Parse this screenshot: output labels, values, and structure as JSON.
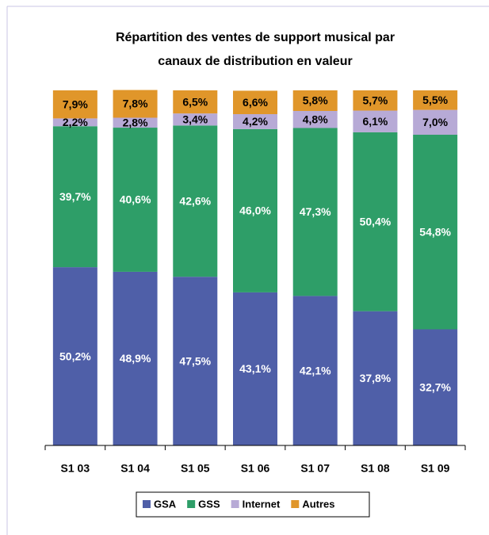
{
  "chart_data": {
    "type": "stacked_bar",
    "title": [
      "Répartition des ventes de support musical par",
      "canaux de distribution en valeur"
    ],
    "categories": [
      "S1 03",
      "S1 04",
      "S1 05",
      "S1 06",
      "S1 07",
      "S1 08",
      "S1 09"
    ],
    "ylim": [
      0,
      100
    ],
    "legend": "bottom",
    "series": [
      {
        "name": "GSA",
        "color": "#4f5fa8",
        "label_color": "#ffffff",
        "values": [
          50.2,
          48.9,
          47.5,
          43.1,
          42.1,
          37.8,
          32.7
        ],
        "value_labels": [
          "50,2%",
          "48,9%",
          "47,5%",
          "43,1%",
          "42,1%",
          "37,8%",
          "32,7%"
        ]
      },
      {
        "name": "GSS",
        "color": "#2e9e68",
        "label_color": "#ffffff",
        "values": [
          39.7,
          40.6,
          42.6,
          46.0,
          47.3,
          50.4,
          54.8
        ],
        "value_labels": [
          "39,7%",
          "40,6%",
          "42,6%",
          "46,0%",
          "47,3%",
          "50,4%",
          "54,8%"
        ]
      },
      {
        "name": "Internet",
        "color": "#b7aad6",
        "label_color": "#000000",
        "values": [
          2.2,
          2.8,
          3.4,
          4.2,
          4.8,
          6.1,
          7.0
        ],
        "value_labels": [
          "2,2%",
          "2,8%",
          "3,4%",
          "4,2%",
          "4,8%",
          "6,1%",
          "7,0%"
        ]
      },
      {
        "name": "Autres",
        "color": "#e0962a",
        "label_color": "#000000",
        "values": [
          7.9,
          7.8,
          6.5,
          6.6,
          5.8,
          5.7,
          5.5
        ],
        "value_labels": [
          "7,9%",
          "7,8%",
          "6,5%",
          "6,6%",
          "5,8%",
          "5,7%",
          "5,5%"
        ]
      }
    ]
  }
}
